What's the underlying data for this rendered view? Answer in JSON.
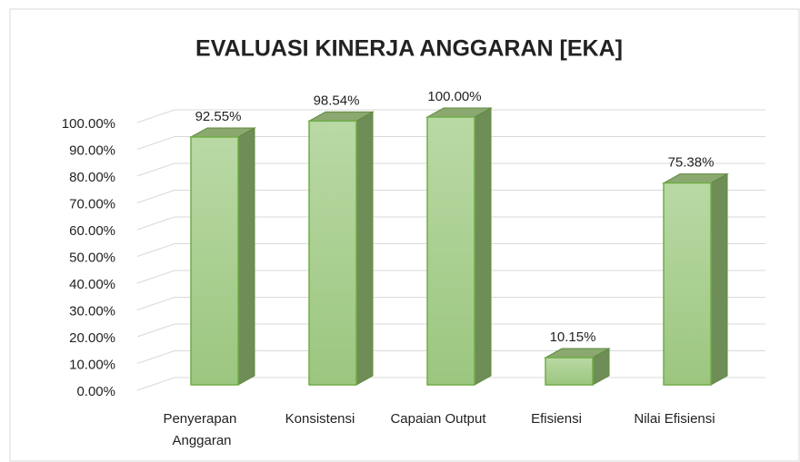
{
  "chart_data": {
    "type": "bar3d",
    "title": "EVALUASI KINERJA ANGGARAN [EKA]",
    "categories": [
      "Penyerapan Anggaran",
      "Konsistensi",
      "Capaian Output",
      "Efisiensi",
      "Nilai Efisiensi"
    ],
    "values": [
      92.55,
      98.54,
      100,
      10.15,
      75.38
    ],
    "value_labels": [
      "92.55%",
      "98.54%",
      "100.00%",
      "10.15%",
      "75.38%"
    ],
    "color": "#a9d08e",
    "ylim": [
      0,
      100
    ],
    "yticks": [
      {
        "value": 0,
        "label": "0.00%"
      },
      {
        "value": 10,
        "label": "10.00%"
      },
      {
        "value": 20,
        "label": "20.00%"
      },
      {
        "value": 30,
        "label": "30.00%"
      },
      {
        "value": 40,
        "label": "40.00%"
      },
      {
        "value": 50,
        "label": "50.00%"
      },
      {
        "value": 60,
        "label": "60.00%"
      },
      {
        "value": 70,
        "label": "70.00%"
      },
      {
        "value": 80,
        "label": "80.00%"
      },
      {
        "value": 90,
        "label": "90.00%"
      },
      {
        "value": 100,
        "label": "100.00%"
      }
    ],
    "grid": true
  }
}
